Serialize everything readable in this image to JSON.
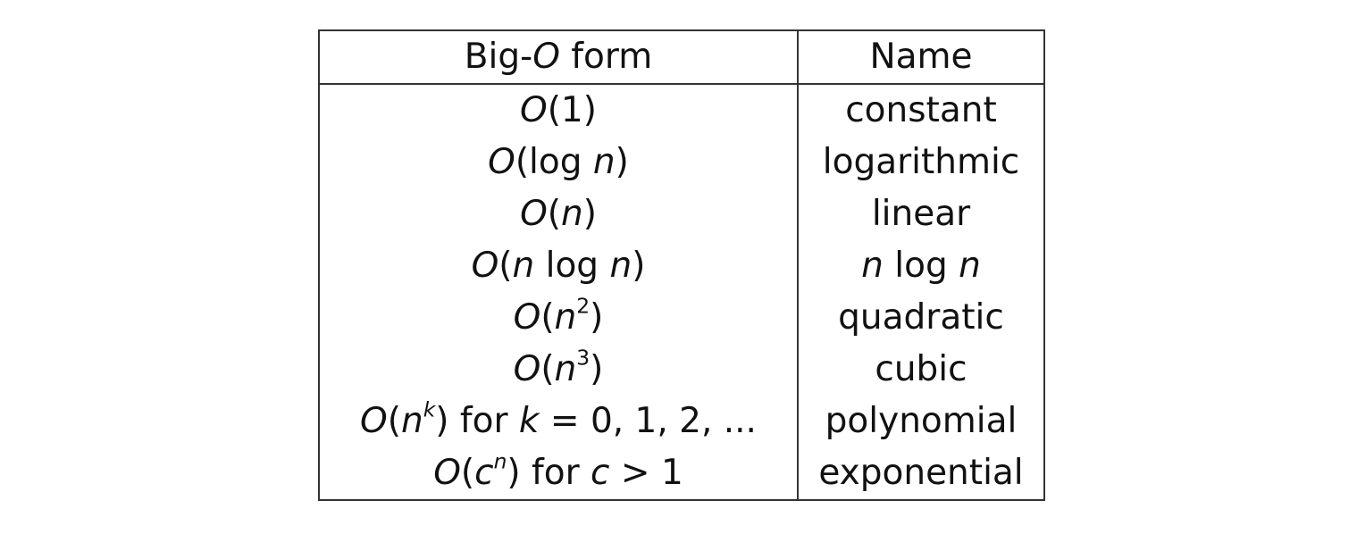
{
  "table": {
    "headers": [
      "Big-O form",
      "Name"
    ],
    "header_parts": {
      "prefix": "Big-",
      "italic": "O",
      "suffix": " form"
    },
    "rows": [
      {
        "form": "O(1)",
        "name": "constant"
      },
      {
        "form": "O(log n)",
        "name": "logarithmic"
      },
      {
        "form": "O(n)",
        "name": "linear"
      },
      {
        "form": "O(n log n)",
        "name": "n log n"
      },
      {
        "form": "O(n^2)",
        "name": "quadratic"
      },
      {
        "form": "O(n^3)",
        "name": "cubic"
      },
      {
        "form": "O(n^k) for k = 0, 1, 2, ...",
        "name": "polynomial"
      },
      {
        "form": "O(c^n) for c > 1",
        "name": "exponential"
      }
    ]
  }
}
